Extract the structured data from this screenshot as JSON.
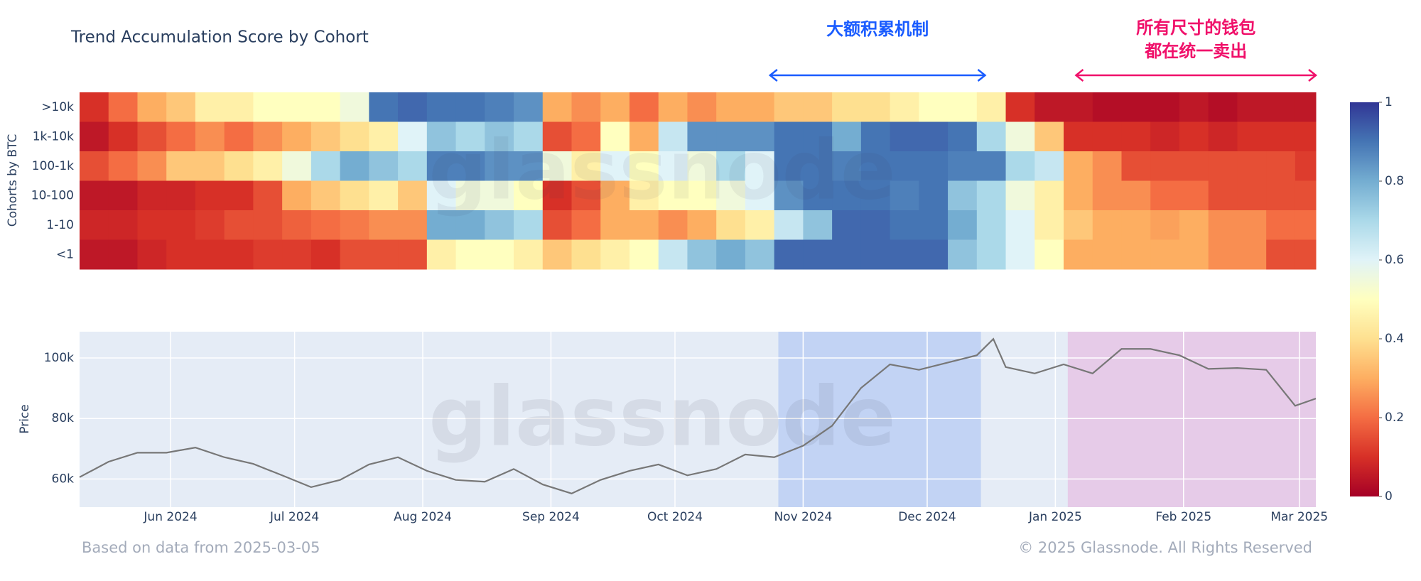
{
  "watermark": "glassnode",
  "annotations": [
    {
      "lines": [
        "大额积累机制"
      ],
      "from": "2024-10-24",
      "to": "2024-12-15",
      "color": "#1a5cff"
    },
    {
      "lines": [
        "所有尺寸的钱包",
        "都在统一卖出"
      ],
      "from": "2025-01-06",
      "to": "2025-03-05",
      "color": "#f0106a"
    }
  ],
  "footer": {
    "source": "Based on data from 2025-03-05",
    "copyright": "© 2025 Glassnode. All Rights Reserved"
  },
  "chart_data": [
    {
      "type": "heatmap",
      "title": "Trend Accumulation Score by Cohort",
      "y_label": "Cohorts by BTC",
      "xlim": [
        "2024-05-10",
        "2025-03-05"
      ],
      "categories": [
        ">10k",
        "1k-10k",
        "100-1k",
        "10-100",
        "1-10",
        "<1"
      ],
      "x": [
        "2024-05-10",
        "2024-05-17",
        "2024-05-24",
        "2024-05-31",
        "2024-06-07",
        "2024-06-14",
        "2024-06-21",
        "2024-06-28",
        "2024-07-05",
        "2024-07-12",
        "2024-07-19",
        "2024-07-26",
        "2024-08-02",
        "2024-08-09",
        "2024-08-16",
        "2024-08-23",
        "2024-08-30",
        "2024-09-06",
        "2024-09-13",
        "2024-09-20",
        "2024-09-27",
        "2024-10-04",
        "2024-10-11",
        "2024-10-18",
        "2024-10-25",
        "2024-11-01",
        "2024-11-08",
        "2024-11-15",
        "2024-11-22",
        "2024-11-29",
        "2024-12-06",
        "2024-12-13",
        "2024-12-20",
        "2024-12-27",
        "2025-01-03",
        "2025-01-10",
        "2025-01-17",
        "2025-01-24",
        "2025-01-31",
        "2025-02-07",
        "2025-02-14",
        "2025-02-21",
        "2025-02-28"
      ],
      "z": [
        [
          0.1,
          0.2,
          0.3,
          0.35,
          0.45,
          0.45,
          0.5,
          0.5,
          0.5,
          0.55,
          0.9,
          0.92,
          0.9,
          0.9,
          0.88,
          0.85,
          0.3,
          0.25,
          0.3,
          0.2,
          0.3,
          0.25,
          0.3,
          0.3,
          0.35,
          0.35,
          0.4,
          0.4,
          0.45,
          0.5,
          0.5,
          0.45,
          0.1,
          0.05,
          0.05,
          0.03,
          0.03,
          0.03,
          0.05,
          0.03,
          0.05,
          0.05,
          0.05
        ],
        [
          0.05,
          0.1,
          0.15,
          0.2,
          0.25,
          0.2,
          0.25,
          0.3,
          0.35,
          0.4,
          0.45,
          0.6,
          0.75,
          0.7,
          0.75,
          0.7,
          0.15,
          0.2,
          0.5,
          0.3,
          0.65,
          0.85,
          0.85,
          0.85,
          0.9,
          0.9,
          0.8,
          0.9,
          0.92,
          0.92,
          0.9,
          0.7,
          0.55,
          0.35,
          0.1,
          0.1,
          0.1,
          0.08,
          0.1,
          0.08,
          0.1,
          0.1,
          0.1
        ],
        [
          0.15,
          0.2,
          0.25,
          0.35,
          0.35,
          0.4,
          0.45,
          0.55,
          0.7,
          0.8,
          0.75,
          0.7,
          0.88,
          0.88,
          0.85,
          0.85,
          0.55,
          0.45,
          0.6,
          0.5,
          0.6,
          0.55,
          0.7,
          0.6,
          0.9,
          0.9,
          0.88,
          0.9,
          0.9,
          0.9,
          0.88,
          0.88,
          0.7,
          0.65,
          0.3,
          0.25,
          0.15,
          0.15,
          0.15,
          0.15,
          0.15,
          0.15,
          0.12
        ],
        [
          0.05,
          0.05,
          0.08,
          0.08,
          0.1,
          0.1,
          0.15,
          0.3,
          0.35,
          0.4,
          0.45,
          0.35,
          0.6,
          0.55,
          0.55,
          0.5,
          0.1,
          0.15,
          0.3,
          0.45,
          0.5,
          0.5,
          0.55,
          0.6,
          0.85,
          0.9,
          0.9,
          0.9,
          0.88,
          0.9,
          0.75,
          0.7,
          0.55,
          0.45,
          0.3,
          0.25,
          0.25,
          0.2,
          0.2,
          0.15,
          0.15,
          0.15,
          0.15
        ],
        [
          0.08,
          0.08,
          0.1,
          0.1,
          0.12,
          0.15,
          0.15,
          0.18,
          0.2,
          0.22,
          0.25,
          0.25,
          0.8,
          0.8,
          0.75,
          0.7,
          0.15,
          0.2,
          0.3,
          0.3,
          0.25,
          0.3,
          0.4,
          0.45,
          0.65,
          0.75,
          0.92,
          0.92,
          0.9,
          0.9,
          0.8,
          0.7,
          0.6,
          0.45,
          0.35,
          0.3,
          0.3,
          0.28,
          0.3,
          0.25,
          0.25,
          0.2,
          0.2
        ],
        [
          0.05,
          0.05,
          0.08,
          0.1,
          0.1,
          0.1,
          0.12,
          0.12,
          0.1,
          0.15,
          0.15,
          0.15,
          0.45,
          0.5,
          0.5,
          0.45,
          0.35,
          0.4,
          0.45,
          0.5,
          0.65,
          0.75,
          0.8,
          0.75,
          0.92,
          0.92,
          0.92,
          0.92,
          0.92,
          0.92,
          0.75,
          0.7,
          0.6,
          0.5,
          0.3,
          0.3,
          0.3,
          0.3,
          0.3,
          0.25,
          0.25,
          0.15,
          0.15
        ]
      ],
      "zlim": [
        0,
        1
      ],
      "colorbar_ticks": [
        0,
        0.2,
        0.4,
        0.6,
        0.8,
        1
      ],
      "colorscale": [
        "#a50026",
        "#d73027",
        "#f46d43",
        "#fdae61",
        "#fee090",
        "#ffffbf",
        "#e0f3f8",
        "#abd9e9",
        "#74add1",
        "#4575b4",
        "#313695"
      ]
    },
    {
      "type": "line",
      "y_label": "Price",
      "color": "#777777",
      "grid": true,
      "background": "#e5ecf6",
      "xlim": [
        "2024-05-10",
        "2025-03-05"
      ],
      "xticks": [
        {
          "value": "2024-06-01",
          "label": "Jun 2024"
        },
        {
          "value": "2024-07-01",
          "label": "Jul 2024"
        },
        {
          "value": "2024-08-01",
          "label": "Aug 2024"
        },
        {
          "value": "2024-09-01",
          "label": "Sep 2024"
        },
        {
          "value": "2024-10-01",
          "label": "Oct 2024"
        },
        {
          "value": "2024-11-01",
          "label": "Nov 2024"
        },
        {
          "value": "2024-12-01",
          "label": "Dec 2024"
        },
        {
          "value": "2025-01-01",
          "label": "Jan 2025"
        },
        {
          "value": "2025-02-01",
          "label": "Feb 2025"
        },
        {
          "value": "2025-03-01",
          "label": "Mar 2025"
        }
      ],
      "ylim": [
        50700,
        108700
      ],
      "yticks": [
        {
          "value": 60000,
          "label": "60k"
        },
        {
          "value": 80000,
          "label": "80k"
        },
        {
          "value": 100000,
          "label": "100k"
        }
      ],
      "shaded_ranges": [
        {
          "from": "2024-10-26",
          "to": "2024-12-14",
          "color": "rgba(120,160,240,0.32)"
        },
        {
          "from": "2025-01-04",
          "to": "2025-03-05",
          "color": "rgba(230,165,215,0.45)"
        }
      ],
      "x": [
        "2024-05-10",
        "2024-05-17",
        "2024-05-24",
        "2024-05-31",
        "2024-06-07",
        "2024-06-14",
        "2024-06-21",
        "2024-06-28",
        "2024-07-05",
        "2024-07-12",
        "2024-07-19",
        "2024-07-26",
        "2024-08-02",
        "2024-08-09",
        "2024-08-16",
        "2024-08-23",
        "2024-08-30",
        "2024-09-06",
        "2024-09-13",
        "2024-09-20",
        "2024-09-27",
        "2024-10-04",
        "2024-10-11",
        "2024-10-18",
        "2024-10-25",
        "2024-11-01",
        "2024-11-08",
        "2024-11-15",
        "2024-11-22",
        "2024-11-29",
        "2024-12-06",
        "2024-12-13",
        "2024-12-17",
        "2024-12-20",
        "2024-12-27",
        "2025-01-03",
        "2025-01-10",
        "2025-01-17",
        "2025-01-24",
        "2025-01-31",
        "2025-02-07",
        "2025-02-14",
        "2025-02-21",
        "2025-02-28",
        "2025-03-05"
      ],
      "values": [
        60600,
        65700,
        68700,
        68700,
        70400,
        67200,
        65000,
        61200,
        57300,
        59700,
        64800,
        67200,
        62700,
        59700,
        59100,
        63300,
        58200,
        55200,
        59700,
        62700,
        64800,
        61200,
        63300,
        68100,
        67200,
        71000,
        77600,
        90100,
        97900,
        96100,
        98500,
        100900,
        106300,
        97000,
        94900,
        97900,
        94900,
        103000,
        103000,
        100900,
        96400,
        96700,
        96100,
        84200,
        86600
      ]
    }
  ]
}
